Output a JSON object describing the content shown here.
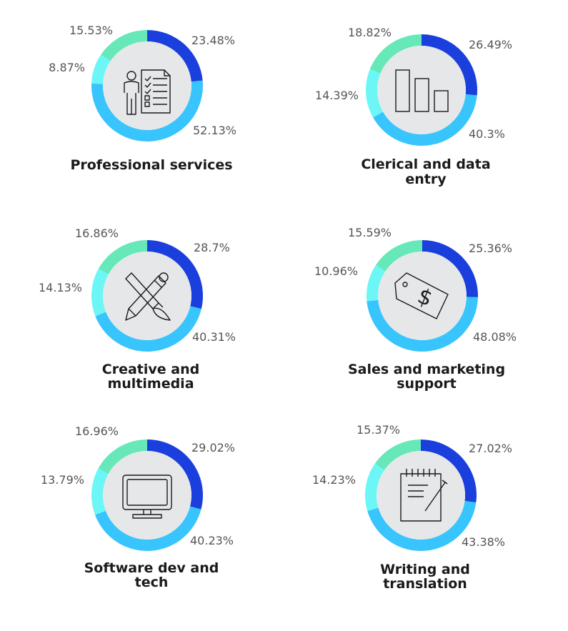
{
  "colors": {
    "segment_1": "#1a3fdc",
    "segment_2": "#38c4fc",
    "segment_3": "#6cf6f6",
    "segment_4": "#66e8b8",
    "inner_circle": "#e6e7e8",
    "icon_stroke": "#1a1a1a",
    "label_text": "#555555",
    "title_text": "#1a1a1a"
  },
  "chart_data": [
    {
      "type": "pie",
      "icon": "person-checklist-icon",
      "title_lines": [
        "Professional services"
      ],
      "values": [
        23.48,
        52.13,
        8.87,
        15.53
      ],
      "labels": [
        "23.48%",
        "52.13%",
        "8.87%",
        "15.53%"
      ]
    },
    {
      "type": "pie",
      "icon": "bar-chart-icon",
      "title_lines": [
        "Clerical and data",
        "entry"
      ],
      "values": [
        26.49,
        40.3,
        14.39,
        18.82
      ],
      "labels": [
        "26.49%",
        "40.3%",
        "14.39%",
        "18.82%"
      ]
    },
    {
      "type": "pie",
      "icon": "pencil-brush-icon",
      "title_lines": [
        "Creative and",
        "multimedia"
      ],
      "values": [
        28.7,
        40.31,
        14.13,
        16.86
      ],
      "labels": [
        "28.7%",
        "40.31%",
        "14.13%",
        "16.86%"
      ]
    },
    {
      "type": "pie",
      "icon": "price-tag-icon",
      "title_lines": [
        "Sales and marketing",
        "support"
      ],
      "values": [
        25.36,
        48.08,
        10.96,
        15.59
      ],
      "labels": [
        "25.36%",
        "48.08%",
        "10.96%",
        "15.59%"
      ]
    },
    {
      "type": "pie",
      "icon": "monitor-icon",
      "title_lines": [
        "Software dev and",
        "tech"
      ],
      "values": [
        29.02,
        40.23,
        13.79,
        16.96
      ],
      "labels": [
        "29.02%",
        "40.23%",
        "13.79%",
        "16.96%"
      ]
    },
    {
      "type": "pie",
      "icon": "notepad-pen-icon",
      "title_lines": [
        "Writing and",
        "translation"
      ],
      "values": [
        27.02,
        43.38,
        14.23,
        15.37
      ],
      "labels": [
        "27.02%",
        "43.38%",
        "14.23%",
        "15.37%"
      ]
    }
  ]
}
